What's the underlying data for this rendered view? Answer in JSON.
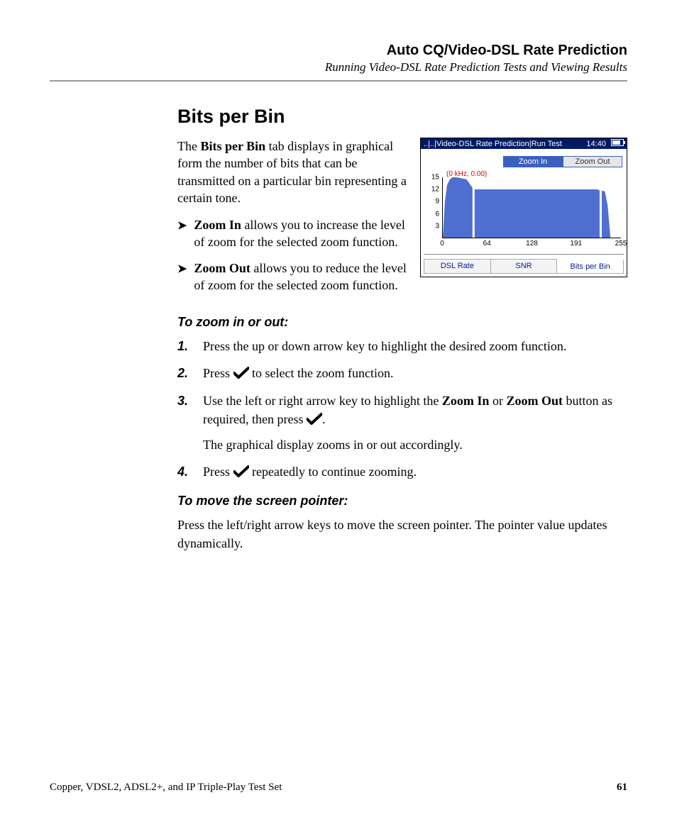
{
  "header": {
    "title": "Auto CQ/Video-DSL Rate Prediction",
    "subtitle": "Running Video-DSL Rate Prediction Tests and Viewing Results"
  },
  "section": {
    "heading": "Bits per Bin",
    "intro_pre": "The ",
    "intro_bold": "Bits per Bin",
    "intro_post": " tab displays in graphical form the number of bits that can be transmitted on a particular bin representing a certain tone.",
    "bullets": [
      {
        "bold": "Zoom In",
        "rest": " allows you to increase the level of zoom for the selected zoom function."
      },
      {
        "bold": "Zoom Out",
        "rest": " allows you to reduce the level of zoom for the selected zoom function."
      }
    ],
    "proc1_title": "To zoom in or out:",
    "steps": [
      {
        "text": "Press the up or down arrow key to highlight the desired zoom function."
      },
      {
        "pre": "Press ",
        "icon": true,
        "post": " to select the zoom function."
      },
      {
        "pre": "Use the left or right arrow key to highlight the ",
        "b1": "Zoom In",
        "mid": " or ",
        "b2": "Zoom Out",
        "post1": " button as required, then press ",
        "icon": true,
        "post2": ".",
        "sub": "The graphical display zooms in or out accordingly."
      },
      {
        "pre": "Press ",
        "icon": true,
        "post": " repeatedly to continue zooming."
      }
    ],
    "proc2_title": "To move the screen pointer:",
    "proc2_body": "Press the left/right arrow keys to move the screen pointer. The pointer value updates dynamically."
  },
  "device": {
    "titlebar_path": "..|..|Video-DSL Rate Prediction|Run Test",
    "clock": "14:40",
    "zoom_in": "Zoom In",
    "zoom_out": "Zoom Out",
    "coord_label": "(0 kHz, 0.00)",
    "chart": {
      "type": "area",
      "y_ticks": [
        3,
        6,
        9,
        12,
        15
      ],
      "ylim": [
        0,
        15
      ],
      "x_ticks": [
        0,
        64,
        128,
        191,
        255
      ],
      "xlim": [
        0,
        255
      ],
      "fill_color": "#4f6fd1",
      "stroke_color": "#ffffff",
      "series_x": [
        0,
        3,
        6,
        10,
        14,
        20,
        34,
        44,
        52,
        76,
        112,
        150,
        190,
        220,
        232,
        236,
        240,
        255
      ],
      "series_y": [
        0,
        9,
        13,
        14.5,
        15,
        15,
        14.5,
        12,
        12,
        12,
        12,
        12,
        12,
        12,
        11.5,
        8,
        0,
        0
      ],
      "highlight_bins": [
        44,
        226
      ],
      "background_color": "#ffffff",
      "axis_color": "#000000",
      "tick_fontsize": 10
    },
    "tabs": [
      "DSL Rate",
      "SNR",
      "Bits per Bin"
    ],
    "active_tab": 2
  },
  "footer": {
    "left": "Copper, VDSL2, ADSL2+, and IP Triple-Play Test Set",
    "page": "61"
  },
  "colors": {
    "device_header_bg": "#001a66",
    "zoom_active_bg": "#3a5fbf",
    "tab_text": "#001a99",
    "coord_text": "#d00000"
  }
}
